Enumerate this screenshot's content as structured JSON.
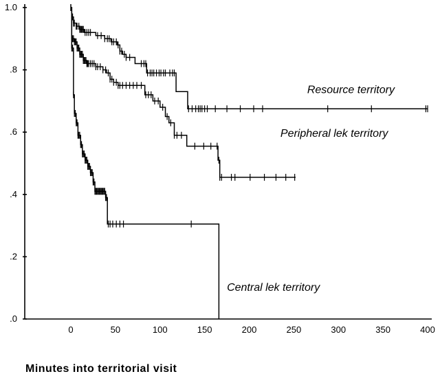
{
  "chart_data": {
    "type": "line",
    "subtype": "kaplan-meier-survival",
    "xlabel": "Minutes into territorial visit",
    "ylabel": "",
    "xlim": [
      -50,
      400
    ],
    "ylim": [
      0,
      1.0
    ],
    "x_ticks": [
      0,
      50,
      100,
      150,
      200,
      250,
      300,
      350,
      400
    ],
    "x_tick_labels": [
      "0",
      "50",
      "100",
      "150",
      "200",
      "250",
      "300",
      "350",
      "400"
    ],
    "y_ticks": [
      0,
      0.2,
      0.4,
      0.6,
      0.8,
      1.0
    ],
    "y_tick_labels": [
      ".0",
      ".2",
      ".4",
      ".6",
      ".8",
      "1.0"
    ],
    "grid": false,
    "legend": "none",
    "series": [
      {
        "name": "Resource territory",
        "label_anchor": [
          265,
          0.725
        ],
        "steps": [
          [
            0,
            1.0
          ],
          [
            1,
            0.97
          ],
          [
            3,
            0.95
          ],
          [
            6,
            0.94
          ],
          [
            10,
            0.93
          ],
          [
            15,
            0.92
          ],
          [
            28,
            0.91
          ],
          [
            38,
            0.9
          ],
          [
            45,
            0.89
          ],
          [
            52,
            0.88
          ],
          [
            55,
            0.86
          ],
          [
            58,
            0.85
          ],
          [
            62,
            0.84
          ],
          [
            72,
            0.82
          ],
          [
            85,
            0.79
          ],
          [
            118,
            0.73
          ],
          [
            131,
            0.675
          ],
          [
            400,
            0.675
          ]
        ],
        "censored": [
          0,
          1,
          2,
          3,
          4,
          6,
          7,
          9,
          10,
          11,
          12,
          13,
          14,
          16,
          18,
          20,
          22,
          30,
          34,
          38,
          41,
          43,
          46,
          48,
          51,
          53,
          55,
          57,
          60,
          62,
          66,
          79,
          82,
          84,
          86,
          89,
          91,
          93,
          96,
          99,
          101,
          104,
          106,
          111,
          114,
          116,
          132,
          136,
          140,
          143,
          145,
          147,
          150,
          153,
          162,
          175,
          190,
          205,
          215,
          288,
          337,
          398,
          400
        ]
      },
      {
        "name": "Peripheral lek territory",
        "label_anchor": [
          235,
          0.585
        ],
        "steps": [
          [
            0,
            1.0
          ],
          [
            1,
            0.9
          ],
          [
            4,
            0.89
          ],
          [
            7,
            0.87
          ],
          [
            10,
            0.85
          ],
          [
            14,
            0.83
          ],
          [
            18,
            0.82
          ],
          [
            28,
            0.81
          ],
          [
            36,
            0.8
          ],
          [
            40,
            0.79
          ],
          [
            44,
            0.77
          ],
          [
            48,
            0.76
          ],
          [
            53,
            0.75
          ],
          [
            83,
            0.72
          ],
          [
            92,
            0.7
          ],
          [
            100,
            0.68
          ],
          [
            106,
            0.65
          ],
          [
            110,
            0.63
          ],
          [
            116,
            0.59
          ],
          [
            130,
            0.555
          ],
          [
            165,
            0.51
          ],
          [
            167,
            0.455
          ],
          [
            252,
            0.455
          ]
        ],
        "censored": [
          0,
          2,
          3,
          4,
          5,
          6,
          7,
          8,
          9,
          10,
          11,
          12,
          13,
          14,
          15,
          16,
          17,
          18,
          19,
          20,
          22,
          24,
          26,
          28,
          30,
          33,
          36,
          39,
          42,
          44,
          46,
          48,
          51,
          53,
          55,
          58,
          62,
          66,
          70,
          74,
          79,
          84,
          87,
          90,
          94,
          98,
          103,
          108,
          112,
          116,
          119,
          124,
          139,
          149,
          157,
          164,
          166,
          167,
          169,
          180,
          184,
          201,
          217,
          230,
          241,
          251
        ]
      },
      {
        "name": "Central lek territory",
        "label_anchor": [
          175,
          0.09
        ],
        "steps": [
          [
            0,
            1.0
          ],
          [
            1,
            0.87
          ],
          [
            3,
            0.72
          ],
          [
            4,
            0.66
          ],
          [
            6,
            0.63
          ],
          [
            8,
            0.59
          ],
          [
            11,
            0.56
          ],
          [
            13,
            0.53
          ],
          [
            16,
            0.51
          ],
          [
            19,
            0.49
          ],
          [
            22,
            0.47
          ],
          [
            25,
            0.44
          ],
          [
            27,
            0.41
          ],
          [
            39,
            0.39
          ],
          [
            41,
            0.305
          ],
          [
            166,
            0.305
          ],
          [
            166,
            0.0
          ]
        ],
        "censored": [
          0,
          1,
          2,
          3,
          4,
          5,
          6,
          7,
          8,
          9,
          10,
          11,
          12,
          13,
          14,
          15,
          16,
          17,
          18,
          19,
          20,
          21,
          22,
          23,
          24,
          25,
          26,
          27,
          28,
          29,
          30,
          31,
          32,
          33,
          34,
          35,
          36,
          37,
          38,
          39,
          40,
          42,
          44,
          47,
          51,
          55,
          59,
          135
        ]
      }
    ]
  }
}
